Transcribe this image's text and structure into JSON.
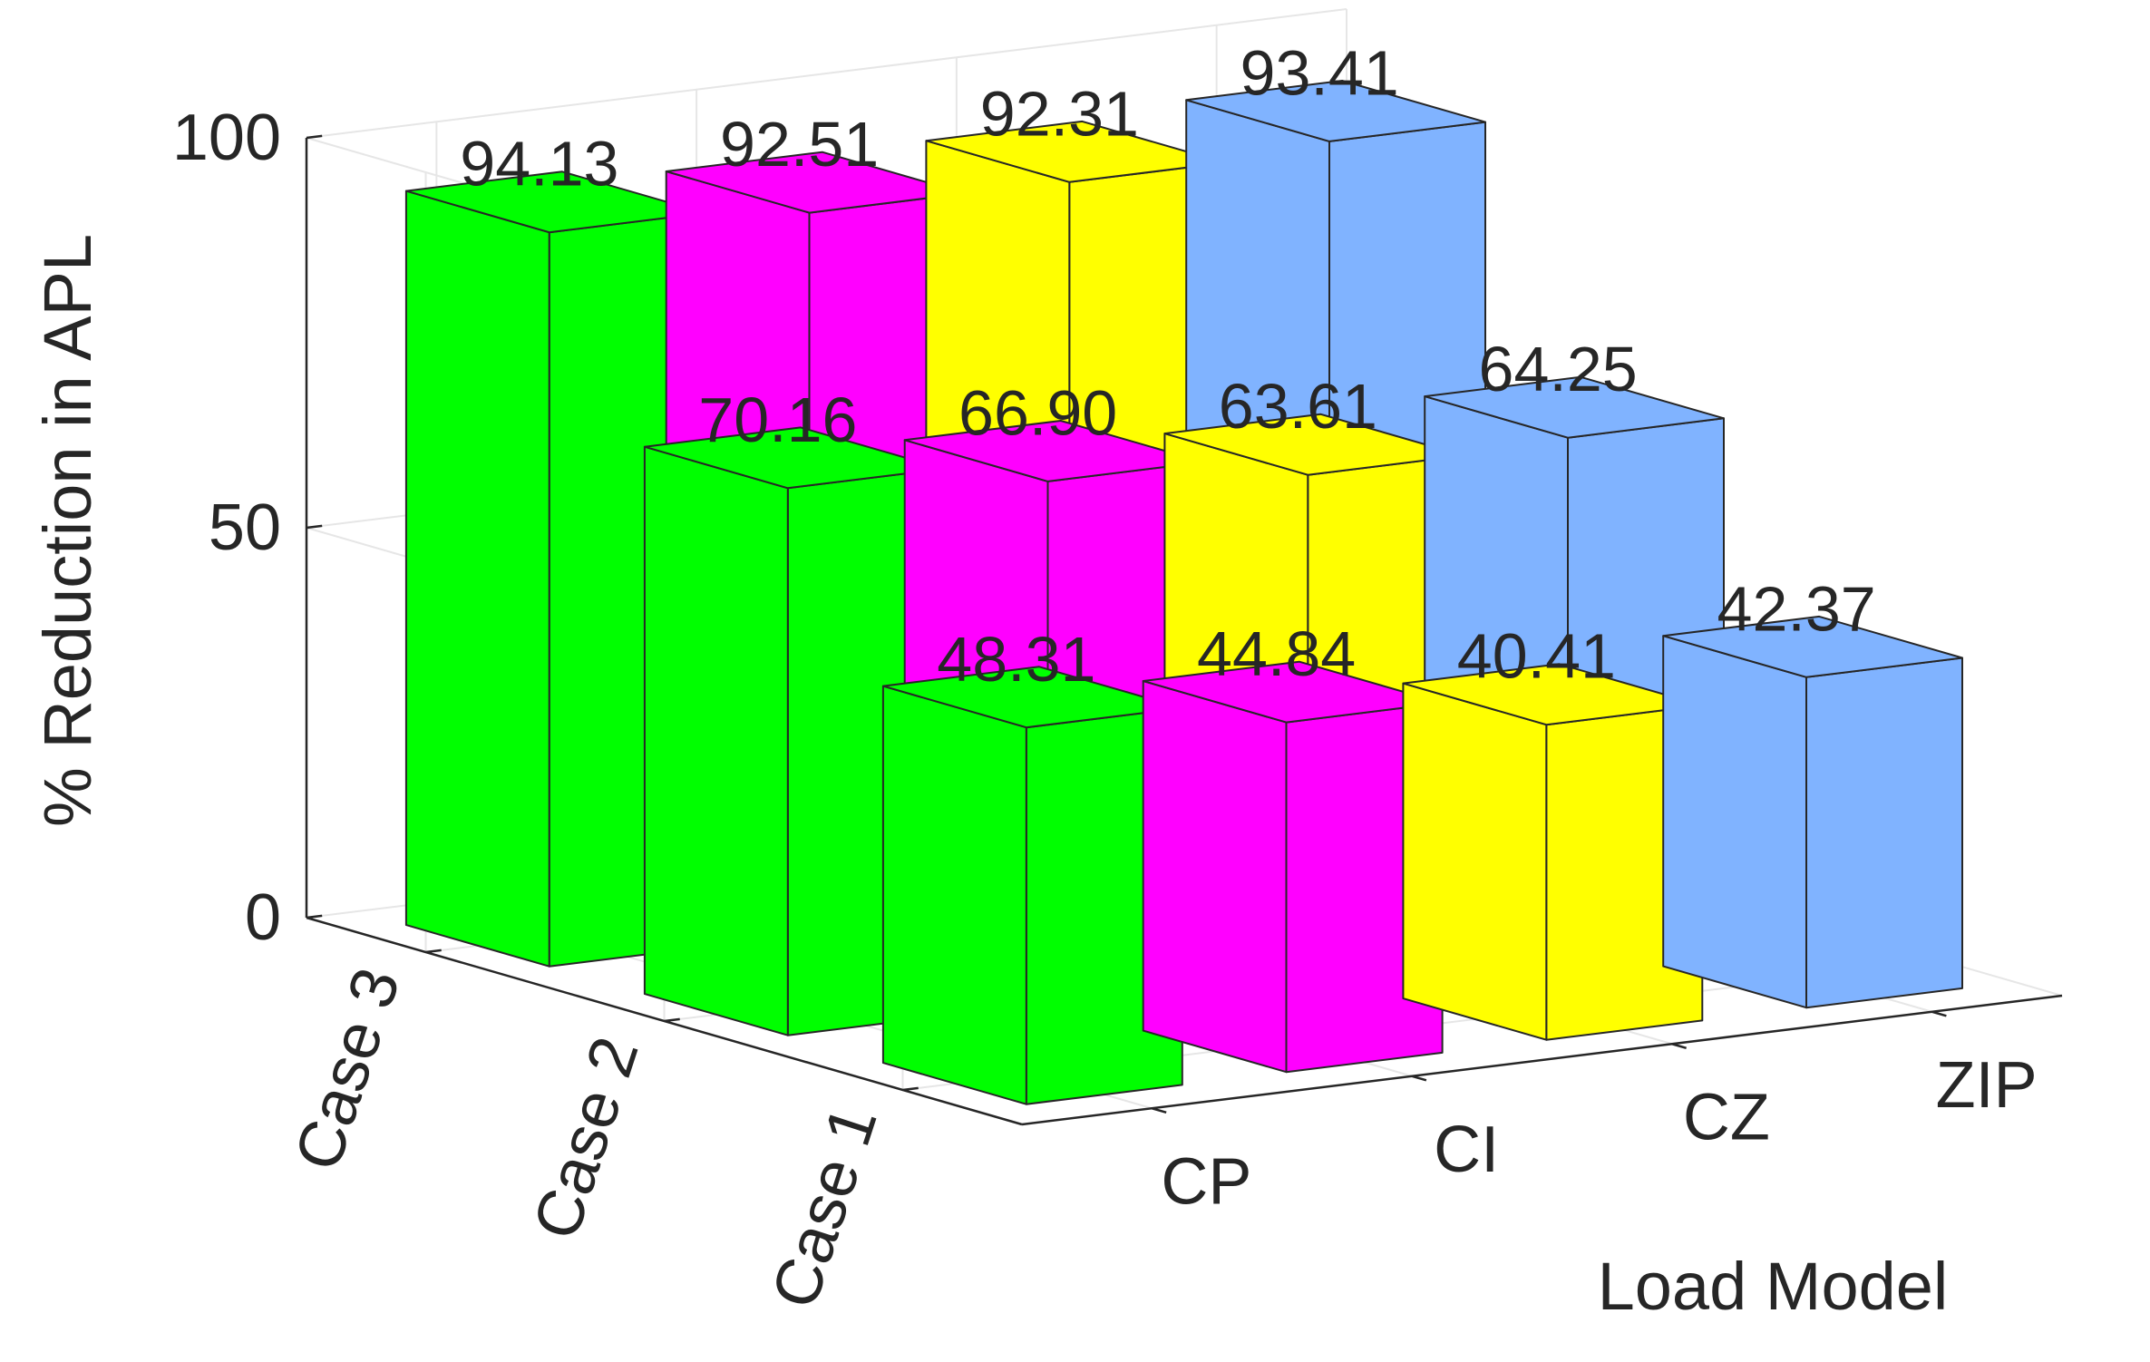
{
  "chart_data": {
    "type": "bar3d",
    "ylabel": "% Reduction in APL",
    "xlabel": "Load Model",
    "zlim": [
      0,
      100
    ],
    "zticks": [
      0,
      50,
      100
    ],
    "load_models": [
      "CP",
      "CI",
      "CZ",
      "ZIP"
    ],
    "cases": [
      "Case 1",
      "Case 2",
      "Case 3"
    ],
    "series": [
      {
        "name": "Case 1",
        "values": [
          48.31,
          44.84,
          40.41,
          42.37
        ],
        "labels": [
          "48.31",
          "44.84",
          "40.41",
          "42.37"
        ]
      },
      {
        "name": "Case 2",
        "values": [
          70.16,
          66.9,
          63.61,
          64.25
        ],
        "labels": [
          "70.16",
          "66.90",
          "63.61",
          "64.25"
        ]
      },
      {
        "name": "Case 3",
        "values": [
          94.13,
          92.51,
          92.31,
          93.41
        ],
        "labels": [
          "94.13",
          "92.51",
          "92.31",
          "93.41"
        ]
      }
    ],
    "colors": [
      "#00ff00",
      "#ff00ff",
      "#ffff00",
      "#80b3ff"
    ],
    "grid": true
  }
}
